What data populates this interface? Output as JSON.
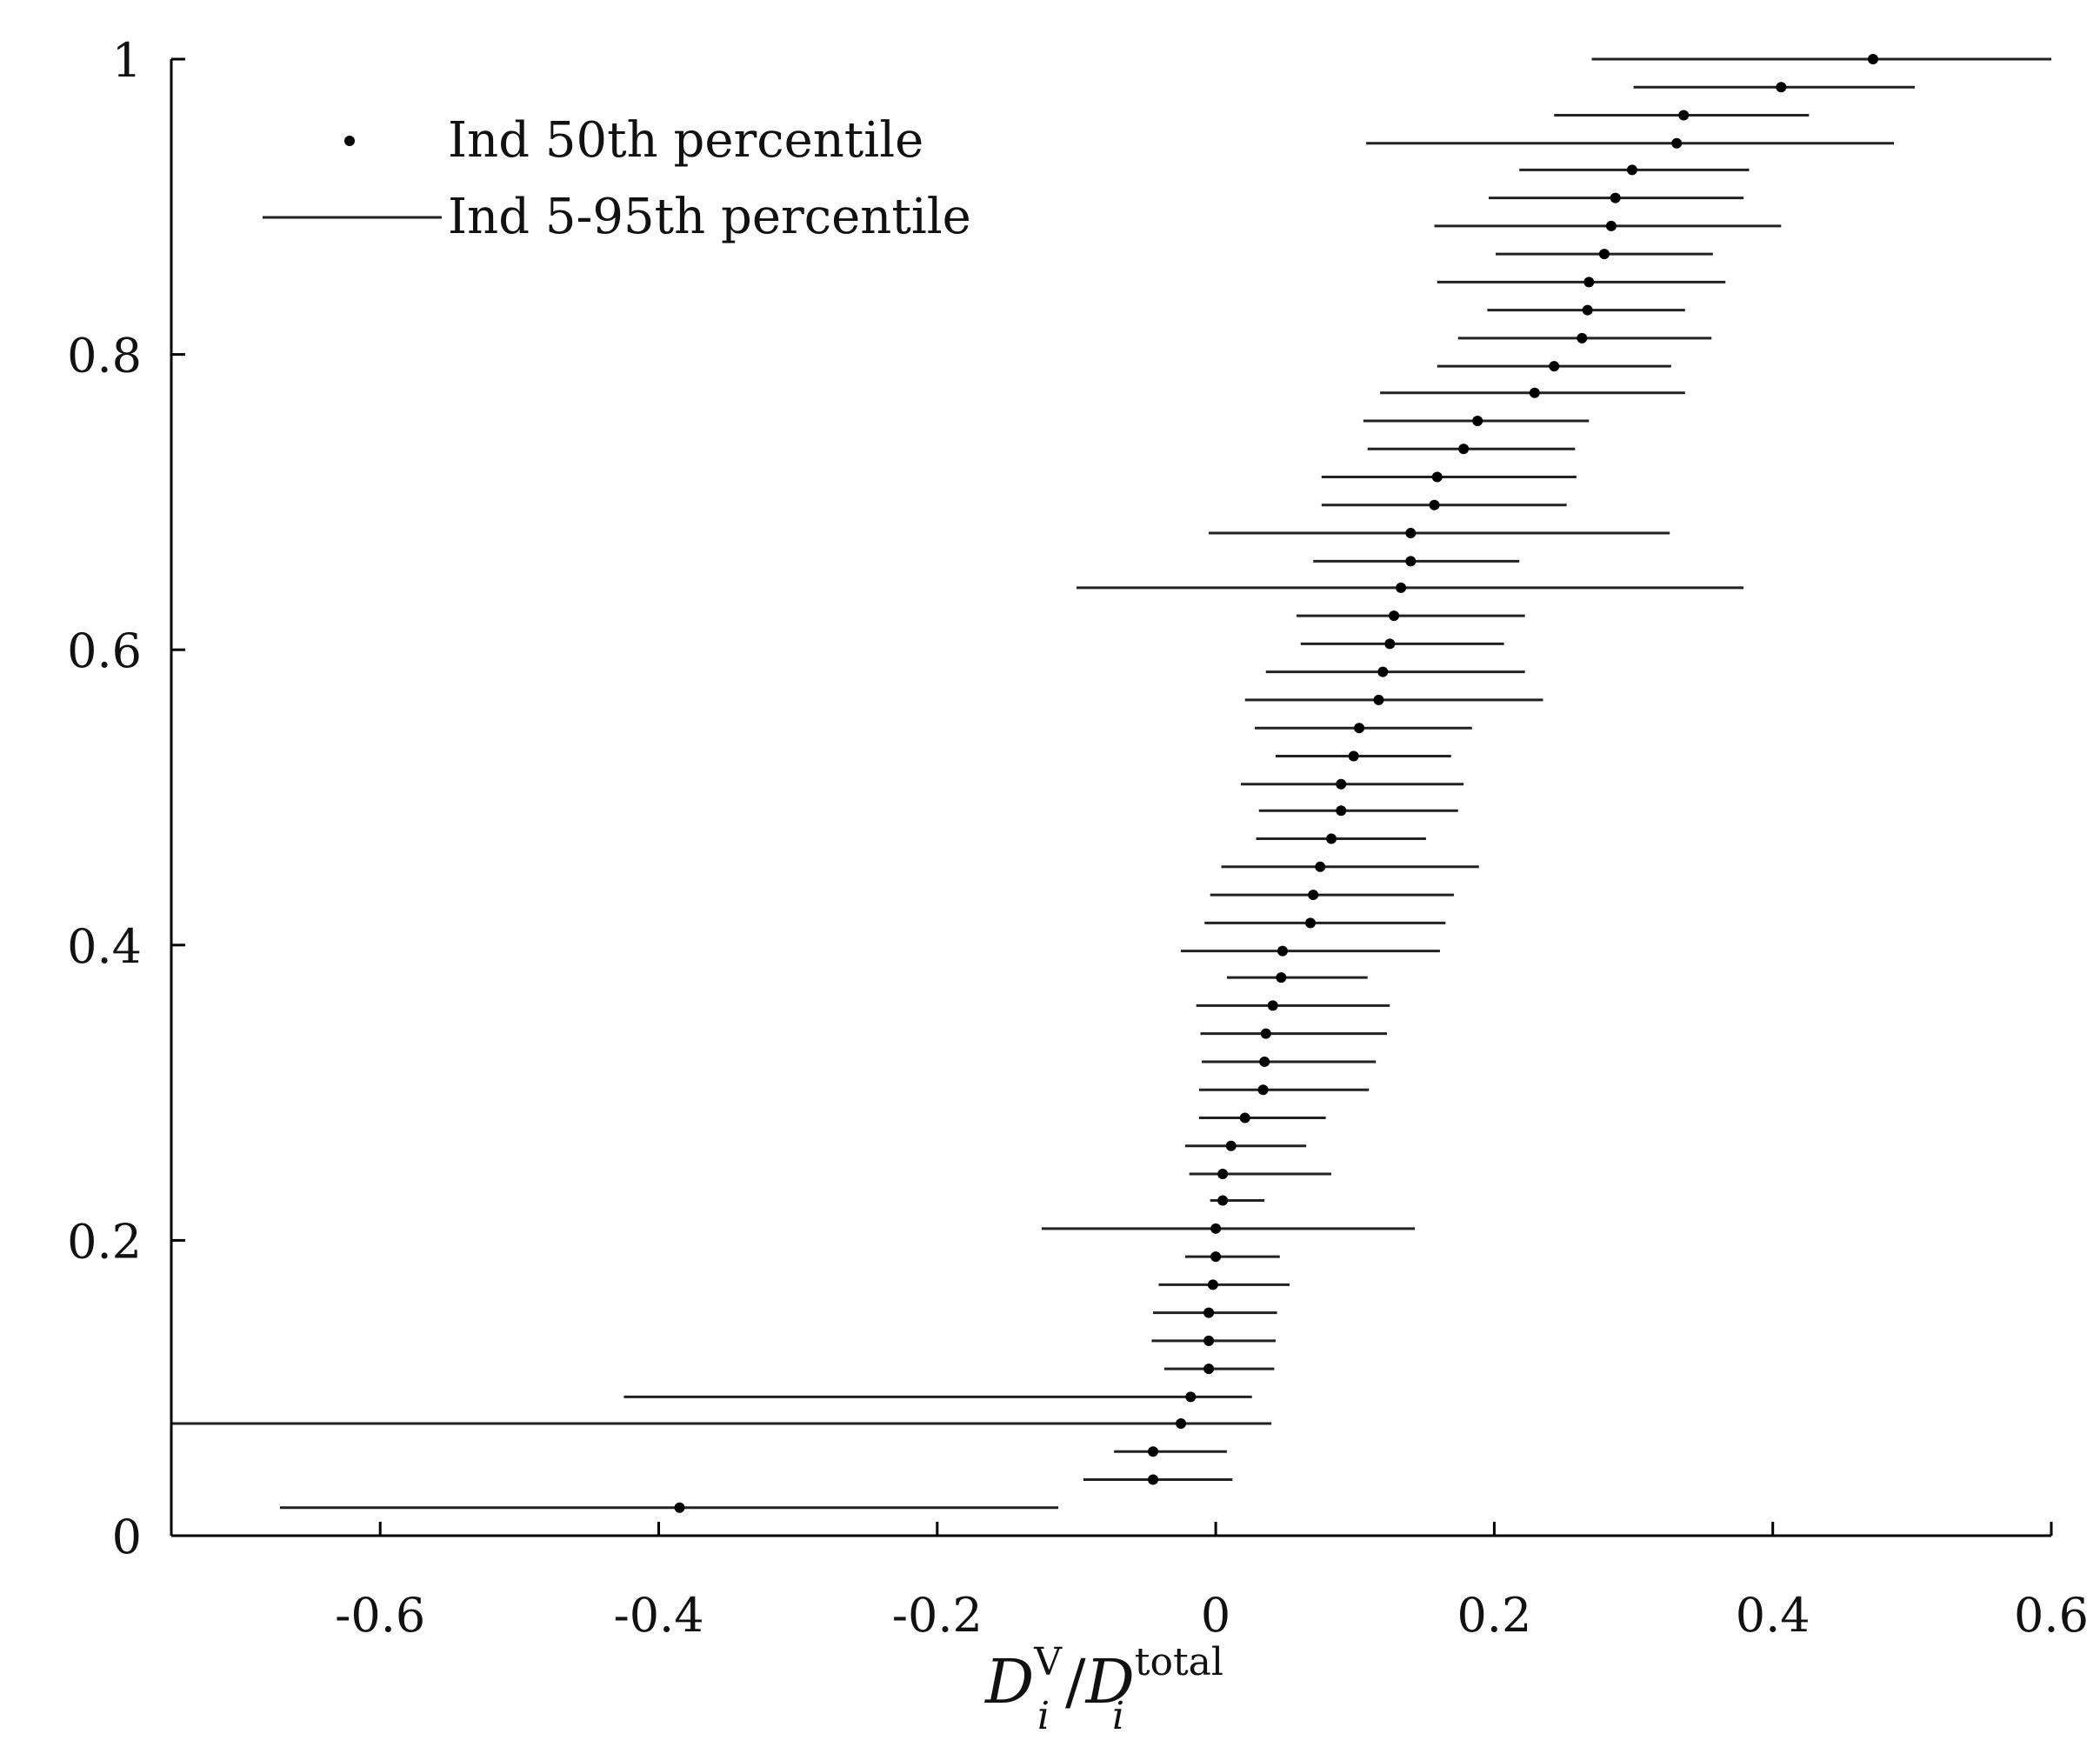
{
  "chart_data": {
    "type": "scatter",
    "title": "",
    "xlabel": {
      "base": "D",
      "sub": "i",
      "sup_num": "V",
      "slash": "/",
      "sup_den": "total"
    },
    "ylabel": "",
    "xlim": [
      -0.75,
      0.6
    ],
    "ylim": [
      0,
      1
    ],
    "xticks": [
      -0.6,
      -0.4,
      -0.2,
      0,
      0.2,
      0.4,
      0.6
    ],
    "xtick_labels": [
      "-0.6",
      "-0.4",
      "-0.2",
      "0",
      "0.2",
      "0.4",
      "0.6"
    ],
    "yticks": [
      0,
      0.2,
      0.4,
      0.6,
      0.8,
      1
    ],
    "ytick_labels": [
      "0",
      "0.2",
      "0.4",
      "0.6",
      "0.8",
      "1"
    ],
    "grid": false,
    "legend_position": "top-left",
    "legend": [
      {
        "marker": "dot",
        "label": "Ind 50th percentile"
      },
      {
        "marker": "line",
        "label": "Ind 5-95th percentile"
      }
    ],
    "colors": {
      "marker": "#000000",
      "line": "#222222",
      "axis": "#000000"
    },
    "series": [
      {
        "y": 0.019,
        "median": -0.385,
        "low": -0.672,
        "high": -0.113
      },
      {
        "y": 0.038,
        "median": -0.045,
        "low": -0.095,
        "high": 0.012
      },
      {
        "y": 0.057,
        "median": -0.045,
        "low": -0.073,
        "high": 0.008
      },
      {
        "y": 0.076,
        "median": -0.025,
        "low": -0.76,
        "high": 0.04
      },
      {
        "y": 0.094,
        "median": -0.018,
        "low": -0.425,
        "high": 0.026
      },
      {
        "y": 0.113,
        "median": -0.005,
        "low": -0.037,
        "high": 0.042
      },
      {
        "y": 0.132,
        "median": -0.005,
        "low": -0.046,
        "high": 0.043
      },
      {
        "y": 0.151,
        "median": -0.005,
        "low": -0.045,
        "high": 0.044
      },
      {
        "y": 0.17,
        "median": -0.002,
        "low": -0.041,
        "high": 0.053
      },
      {
        "y": 0.189,
        "median": 0.0,
        "low": -0.022,
        "high": 0.046
      },
      {
        "y": 0.208,
        "median": 0.0,
        "low": -0.125,
        "high": 0.143
      },
      {
        "y": 0.227,
        "median": 0.005,
        "low": -0.004,
        "high": 0.035
      },
      {
        "y": 0.245,
        "median": 0.005,
        "low": -0.019,
        "high": 0.083
      },
      {
        "y": 0.264,
        "median": 0.011,
        "low": -0.022,
        "high": 0.065
      },
      {
        "y": 0.283,
        "median": 0.021,
        "low": -0.012,
        "high": 0.079
      },
      {
        "y": 0.302,
        "median": 0.034,
        "low": -0.012,
        "high": 0.11
      },
      {
        "y": 0.321,
        "median": 0.035,
        "low": -0.01,
        "high": 0.115
      },
      {
        "y": 0.34,
        "median": 0.036,
        "low": -0.011,
        "high": 0.123
      },
      {
        "y": 0.359,
        "median": 0.041,
        "low": -0.014,
        "high": 0.125
      },
      {
        "y": 0.378,
        "median": 0.047,
        "low": 0.008,
        "high": 0.109
      },
      {
        "y": 0.396,
        "median": 0.048,
        "low": -0.025,
        "high": 0.161
      },
      {
        "y": 0.415,
        "median": 0.068,
        "low": -0.008,
        "high": 0.165
      },
      {
        "y": 0.434,
        "median": 0.07,
        "low": -0.004,
        "high": 0.171
      },
      {
        "y": 0.453,
        "median": 0.075,
        "low": 0.004,
        "high": 0.189
      },
      {
        "y": 0.472,
        "median": 0.083,
        "low": 0.029,
        "high": 0.151
      },
      {
        "y": 0.491,
        "median": 0.09,
        "low": 0.031,
        "high": 0.174
      },
      {
        "y": 0.509,
        "median": 0.09,
        "low": 0.018,
        "high": 0.178
      },
      {
        "y": 0.528,
        "median": 0.099,
        "low": 0.043,
        "high": 0.169
      },
      {
        "y": 0.547,
        "median": 0.103,
        "low": 0.028,
        "high": 0.184
      },
      {
        "y": 0.566,
        "median": 0.117,
        "low": 0.021,
        "high": 0.235
      },
      {
        "y": 0.585,
        "median": 0.12,
        "low": 0.036,
        "high": 0.222
      },
      {
        "y": 0.604,
        "median": 0.125,
        "low": 0.061,
        "high": 0.207
      },
      {
        "y": 0.623,
        "median": 0.128,
        "low": 0.058,
        "high": 0.222
      },
      {
        "y": 0.642,
        "median": 0.133,
        "low": -0.1,
        "high": 0.379
      },
      {
        "y": 0.66,
        "median": 0.14,
        "low": 0.07,
        "high": 0.218
      },
      {
        "y": 0.679,
        "median": 0.14,
        "low": -0.005,
        "high": 0.326
      },
      {
        "y": 0.698,
        "median": 0.157,
        "low": 0.076,
        "high": 0.252
      },
      {
        "y": 0.717,
        "median": 0.159,
        "low": 0.076,
        "high": 0.259
      },
      {
        "y": 0.736,
        "median": 0.178,
        "low": 0.109,
        "high": 0.258
      },
      {
        "y": 0.755,
        "median": 0.188,
        "low": 0.106,
        "high": 0.268
      },
      {
        "y": 0.774,
        "median": 0.229,
        "low": 0.118,
        "high": 0.337
      },
      {
        "y": 0.792,
        "median": 0.243,
        "low": 0.159,
        "high": 0.327
      },
      {
        "y": 0.811,
        "median": 0.263,
        "low": 0.174,
        "high": 0.356
      },
      {
        "y": 0.83,
        "median": 0.267,
        "low": 0.195,
        "high": 0.337
      },
      {
        "y": 0.849,
        "median": 0.268,
        "low": 0.159,
        "high": 0.366
      },
      {
        "y": 0.868,
        "median": 0.279,
        "low": 0.201,
        "high": 0.357
      },
      {
        "y": 0.887,
        "median": 0.284,
        "low": 0.157,
        "high": 0.406
      },
      {
        "y": 0.906,
        "median": 0.287,
        "low": 0.196,
        "high": 0.379
      },
      {
        "y": 0.925,
        "median": 0.299,
        "low": 0.218,
        "high": 0.383
      },
      {
        "y": 0.943,
        "median": 0.331,
        "low": 0.108,
        "high": 0.487
      },
      {
        "y": 0.962,
        "median": 0.336,
        "low": 0.243,
        "high": 0.426
      },
      {
        "y": 0.981,
        "median": 0.406,
        "low": 0.3,
        "high": 0.502
      },
      {
        "y": 1.0,
        "median": 0.472,
        "low": 0.27,
        "high": 0.6
      }
    ]
  }
}
